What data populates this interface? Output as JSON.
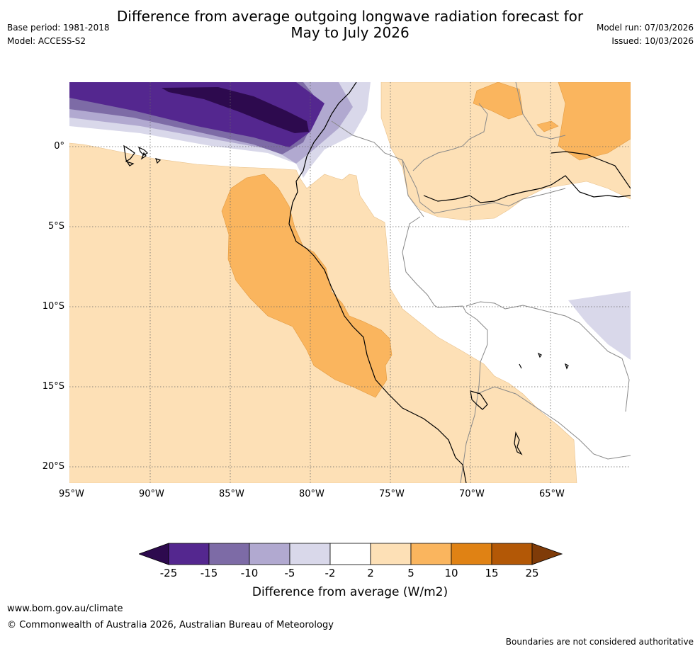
{
  "header": {
    "title_line1": "Difference from average outgoing longwave radiation forecast for",
    "title_line2": "May to July 2026",
    "base_period": "Base period: 1981-2018",
    "model": "Model: ACCESS-S2",
    "model_run": "Model run: 07/03/2026",
    "issued": "Issued: 10/03/2026"
  },
  "map": {
    "lon_labels": [
      "95°W",
      "90°W",
      "85°W",
      "80°W",
      "75°W",
      "70°W",
      "65°W"
    ],
    "lat_labels": [
      "0°",
      "5°S",
      "10°S",
      "15°S",
      "20°S"
    ]
  },
  "colorbar": {
    "tick_labels": [
      "-25",
      "-15",
      "-10",
      "-5",
      "-2",
      "2",
      "5",
      "10",
      "15",
      "25"
    ],
    "colors": {
      "lt_-25": "#2d0a4e",
      "-25_-15": "#54278f",
      "-15_-10": "#7d6ba6",
      "-10_-5": "#b1a9d0",
      "-5_-2": "#d9d8ea",
      "-2_2": "#ffffff",
      "2_5": "#fde0b6",
      "5_10": "#fab55e",
      "10_15": "#e08214",
      "15_25": "#b35806",
      "gt_25": "#7f3b08"
    },
    "title": "Difference from average (W/m2)"
  },
  "footer": {
    "url": "www.bom.gov.au/climate",
    "copyright": "© Commonwealth of Australia 2026, Australian Bureau of Meteorology",
    "disclaimer": "Boundaries are not considered authoritative"
  }
}
